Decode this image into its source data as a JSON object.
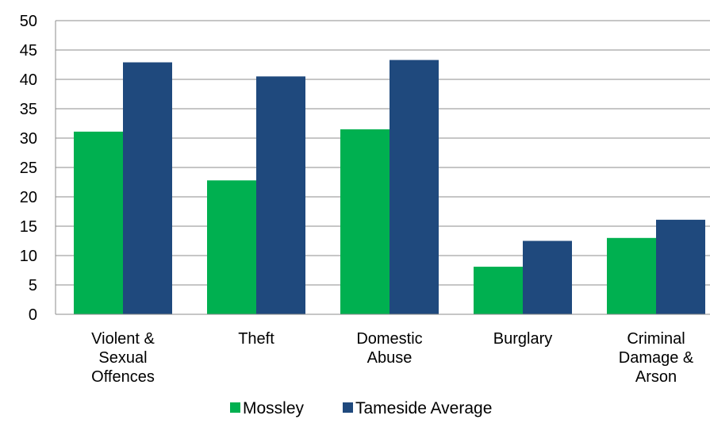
{
  "chart_data": {
    "type": "bar",
    "title": "",
    "xlabel": "",
    "ylabel": "",
    "ylim": [
      0,
      50
    ],
    "yticks": [
      0,
      5,
      10,
      15,
      20,
      25,
      30,
      35,
      40,
      45,
      50
    ],
    "grid": true,
    "legend_position": "bottom",
    "categories": [
      [
        "Violent &",
        "Sexual",
        "Offences"
      ],
      [
        "Theft"
      ],
      [
        "Domestic",
        "Abuse"
      ],
      [
        "Burglary"
      ],
      [
        "Criminal",
        "Damage &",
        "Arson"
      ]
    ],
    "series": [
      {
        "name": "Mossley",
        "color": "#00b050",
        "values": [
          31.1,
          22.8,
          31.5,
          8.1,
          13.0
        ]
      },
      {
        "name": "Tameside Average",
        "color": "#1f497d",
        "values": [
          42.9,
          40.5,
          43.3,
          12.5,
          16.1
        ]
      }
    ]
  }
}
